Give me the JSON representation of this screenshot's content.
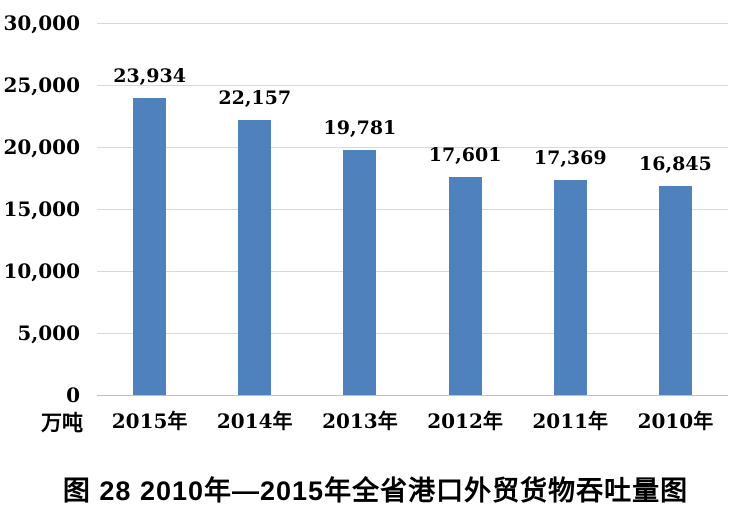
{
  "chart_data": {
    "type": "bar",
    "categories": [
      "2015年",
      "2014年",
      "2013年",
      "2012年",
      "2011年",
      "2010年"
    ],
    "values": [
      23934,
      22157,
      19781,
      17601,
      17369,
      16845
    ],
    "value_labels": [
      "23,934",
      "22,157",
      "19,781",
      "17,601",
      "17,369",
      "16,845"
    ],
    "title": "图 28  2010年—2015年全省港口外贸货物吞吐量图",
    "xlabel": "",
    "ylabel": "万吨",
    "ylim": [
      0,
      30000
    ],
    "ytick_interval": 5000,
    "ytick_labels": [
      "0",
      "5,000",
      "10,000",
      "15,000",
      "20,000",
      "25,000",
      "30,000"
    ],
    "grid": true,
    "legend": "none",
    "bar_color": "#4F81BD",
    "gridline_color": "#D9D9D9",
    "axis_line_color": "#BFBFBF"
  },
  "caption": "图 28  2010年—2015年全省港口外贸货物吞吐量图",
  "unit_label": "万吨"
}
